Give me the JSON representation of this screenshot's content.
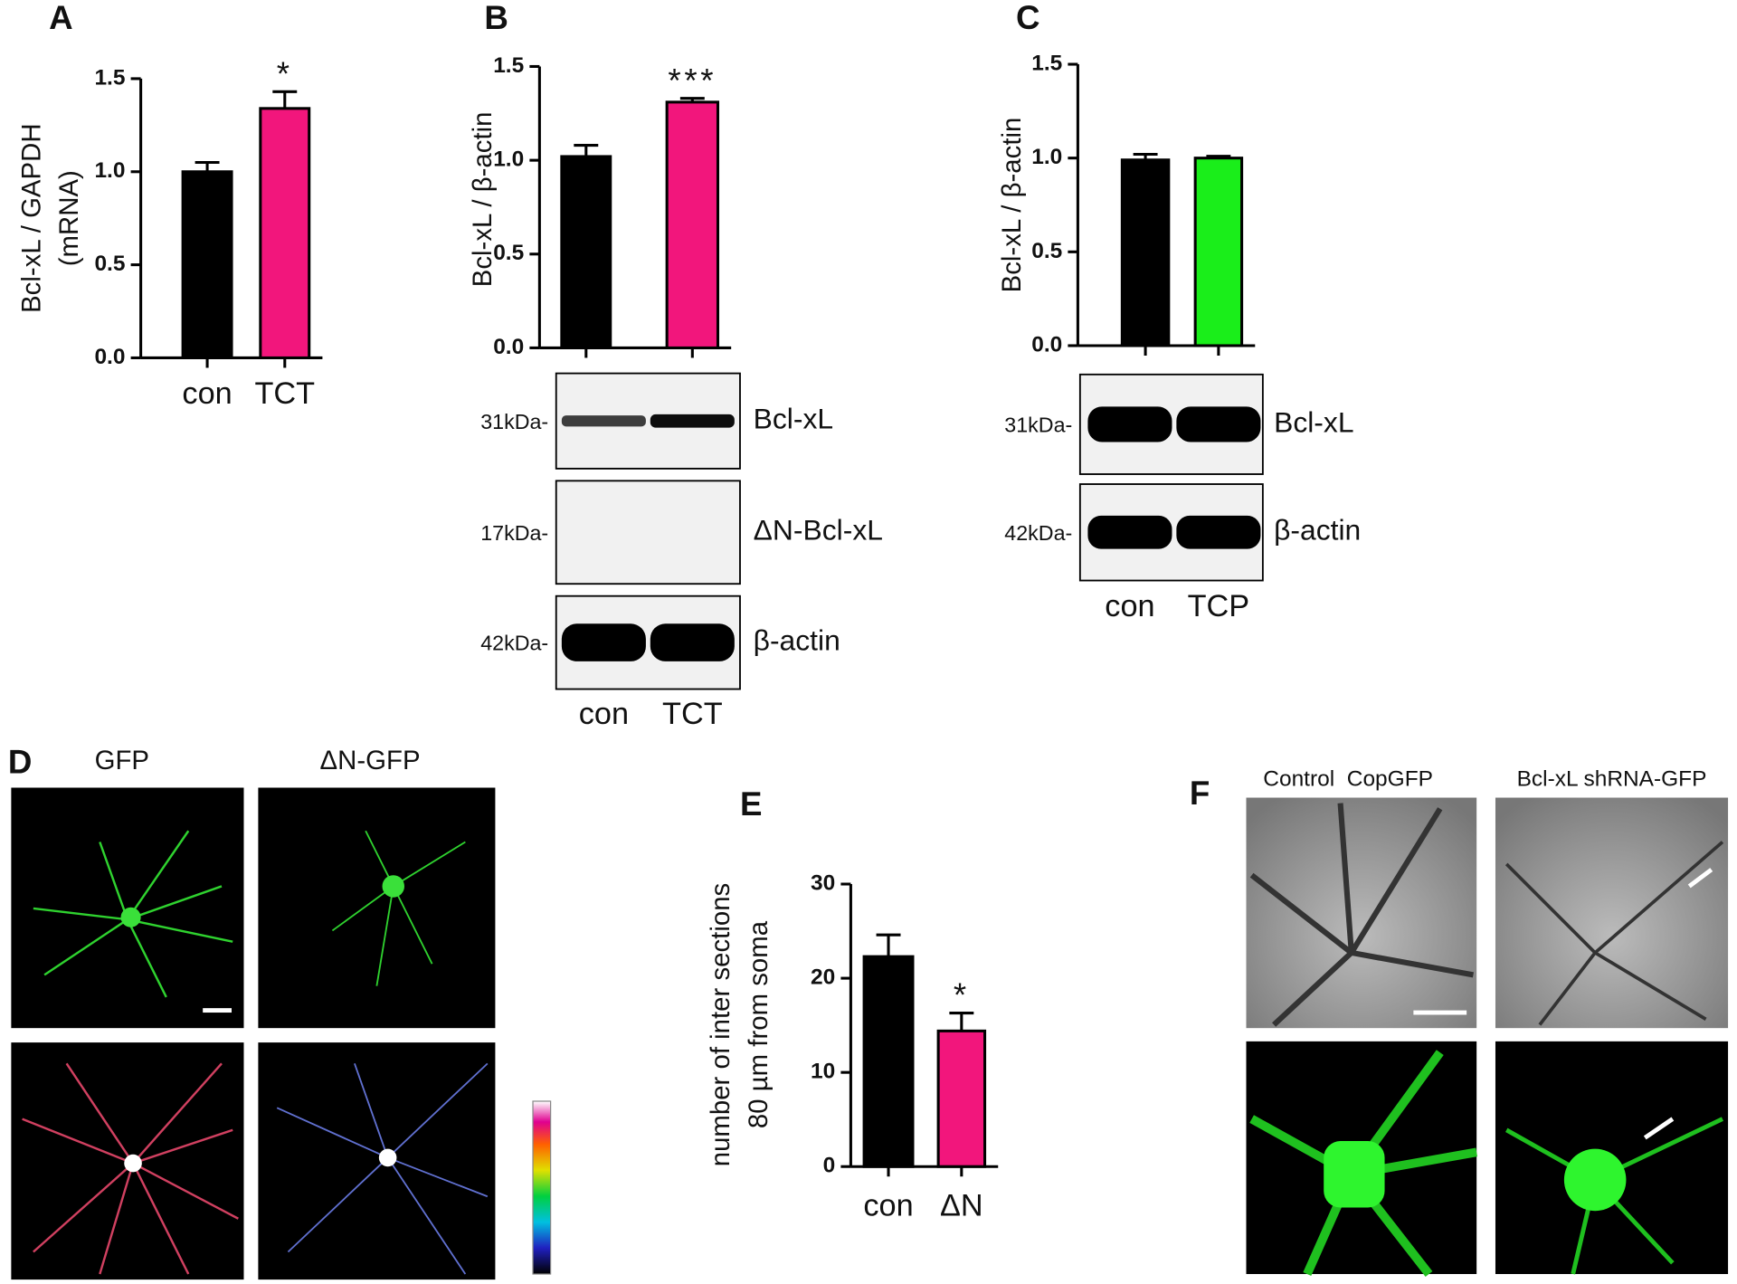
{
  "chart_data": [
    {
      "type": "bar",
      "panel": "A",
      "ylabel": [
        "Bcl-xL / GAPDH",
        "(mRNA)"
      ],
      "categories": [
        "con",
        "TCT"
      ],
      "values": [
        1.0,
        1.34
      ],
      "errors": [
        0.05,
        0.09
      ],
      "colors": [
        "#000000",
        "#f2167c"
      ],
      "significance": [
        null,
        "*"
      ],
      "ylim": [
        0,
        1.5
      ],
      "yticks": [
        {
          "value": 0,
          "label": "0.0"
        },
        0.5,
        {
          "value": 1,
          "label": "1.0"
        },
        1.5
      ]
    },
    {
      "type": "bar",
      "panel": "B",
      "ylabel": [
        "Bcl-xL / β-actin"
      ],
      "categories": [
        "con",
        "TCT"
      ],
      "values": [
        1.02,
        1.31
      ],
      "errors": [
        0.06,
        0.02
      ],
      "colors": [
        "#000000",
        "#f2167c"
      ],
      "significance": [
        null,
        "***"
      ],
      "ylim": [
        0,
        1.5
      ],
      "yticks": [
        {
          "value": 0,
          "label": "0.0"
        },
        0.5,
        {
          "value": 1,
          "label": "1.0"
        },
        1.5
      ],
      "blot": [
        {
          "label": "Bcl-xL",
          "size": "31kDa-"
        },
        {
          "label": "ΔN-Bcl-xL",
          "size": "17kDa-"
        },
        {
          "label": "β-actin",
          "size": "42kDa-"
        }
      ]
    },
    {
      "type": "bar",
      "panel": "C",
      "ylabel": [
        "Bcl-xL / β-actin"
      ],
      "categories": [
        "con",
        "TCP"
      ],
      "values": [
        0.99,
        1.0
      ],
      "errors": [
        0.03,
        0.01
      ],
      "colors": [
        "#000000",
        "#1aee1a"
      ],
      "significance": [
        null,
        null
      ],
      "ylim": [
        0,
        1.5
      ],
      "yticks": [
        {
          "value": 0,
          "label": "0.0"
        },
        0.5,
        {
          "value": 1,
          "label": "1.0"
        },
        1.5
      ],
      "blot": [
        {
          "label": "Bcl-xL",
          "size": "31kDa-"
        },
        {
          "label": "β-actin",
          "size": "42kDa-"
        }
      ]
    },
    {
      "type": "bar",
      "panel": "E",
      "ylabel": [
        "number of inter sections",
        "80 µm from soma"
      ],
      "categories": [
        "con",
        "ΔN"
      ],
      "values": [
        22.3,
        14.4
      ],
      "errors": [
        2.3,
        1.9
      ],
      "colors": [
        "#000000",
        "#f2167c"
      ],
      "significance": [
        null,
        "*"
      ],
      "ylim": [
        0,
        30
      ],
      "yticks": [
        0,
        10,
        20,
        30
      ]
    }
  ],
  "micrographs": [
    {
      "panel": "D",
      "labels": [
        "GFP",
        "ΔN-GFP"
      ]
    },
    {
      "panel": "F",
      "labels": [
        "Control  CopGFP",
        "Bcl-xL shRNA-GFP"
      ]
    }
  ]
}
